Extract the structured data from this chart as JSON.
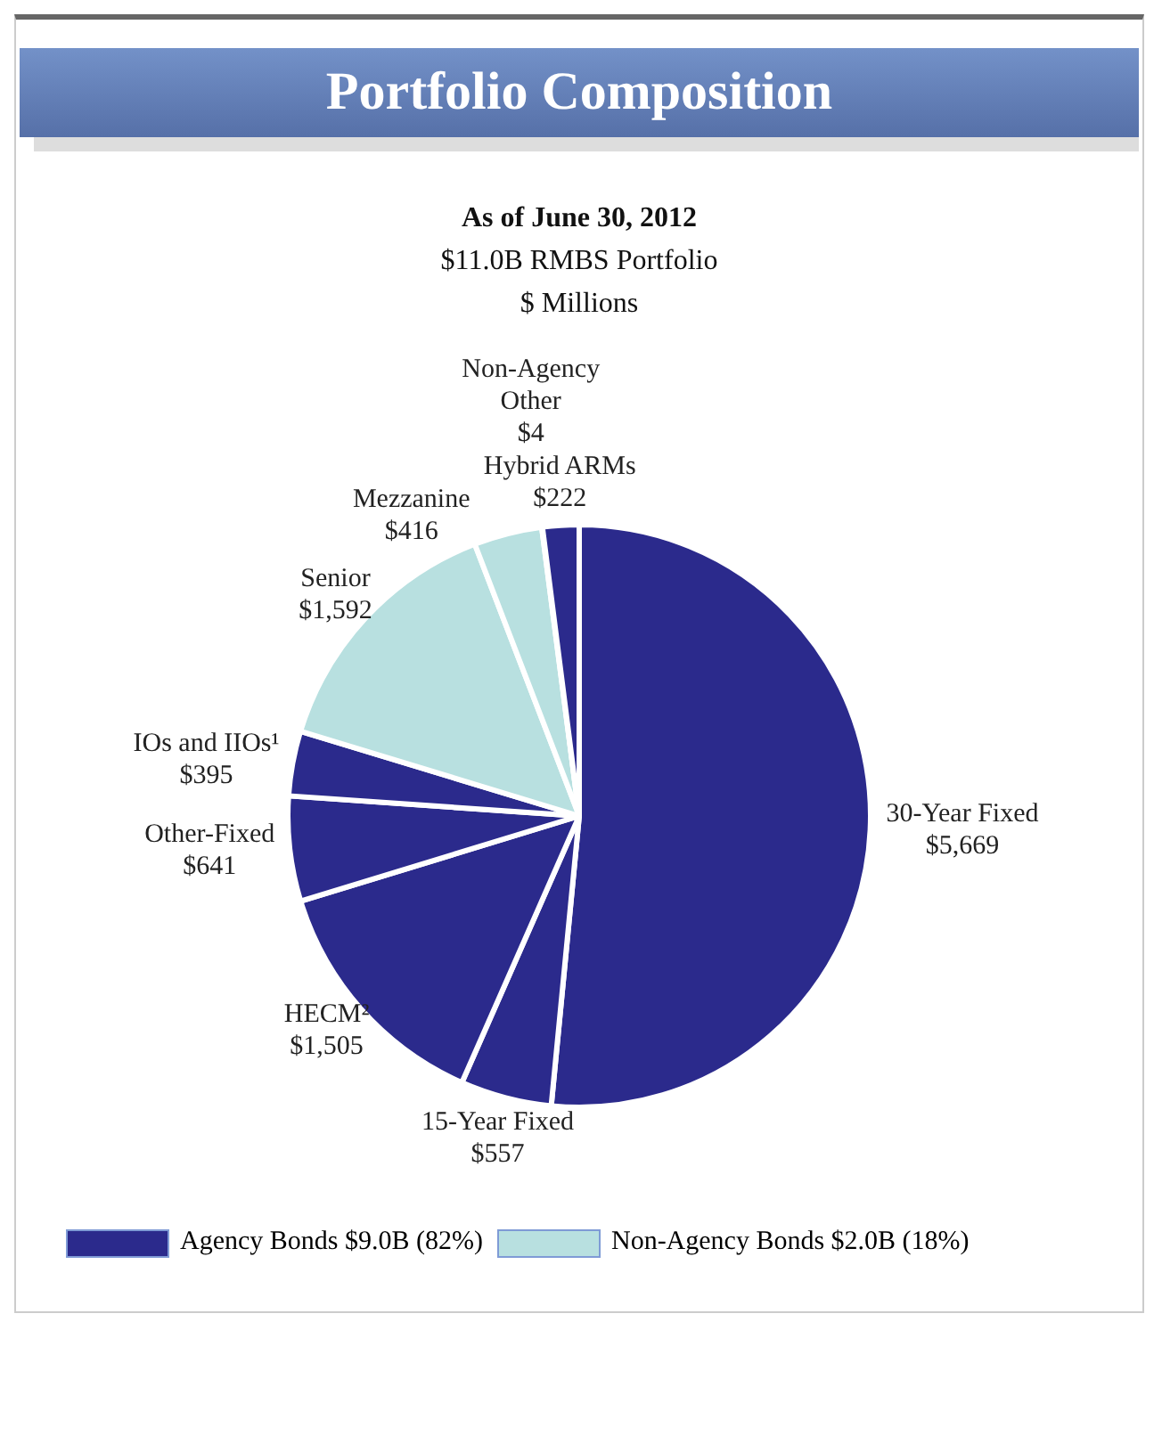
{
  "chart_data": {
    "type": "pie",
    "title": "Portfolio Composition",
    "subtitle": "As of June 30, 2012",
    "annotations": [
      "$11.0B RMBS Portfolio",
      "$ Millions",
      "Agency Bonds $9.0B (82%)",
      "Non-Agency Bonds $2.0B (18%)"
    ],
    "categories": [
      "30-Year Fixed",
      "15-Year Fixed",
      "HECM²",
      "Other-Fixed",
      "IOs and IIOs¹",
      "Senior",
      "Mezzanine",
      "Non-Agency Other",
      "Hybrid ARMs"
    ],
    "values": [
      5669,
      557,
      1505,
      641,
      395,
      1592,
      416,
      4,
      222
    ],
    "value_labels": [
      "$5,669",
      "$557",
      "$1,505",
      "$641",
      "$395",
      "$1,592",
      "$416",
      "$4",
      "$222"
    ],
    "colors": [
      "#2b2a8c",
      "#2b2a8c",
      "#2b2a8c",
      "#2b2a8c",
      "#2b2a8c",
      "#b8e0e0",
      "#b8e0e0",
      "#b8e0e0",
      "#2b2a8c"
    ],
    "legend": false
  }
}
